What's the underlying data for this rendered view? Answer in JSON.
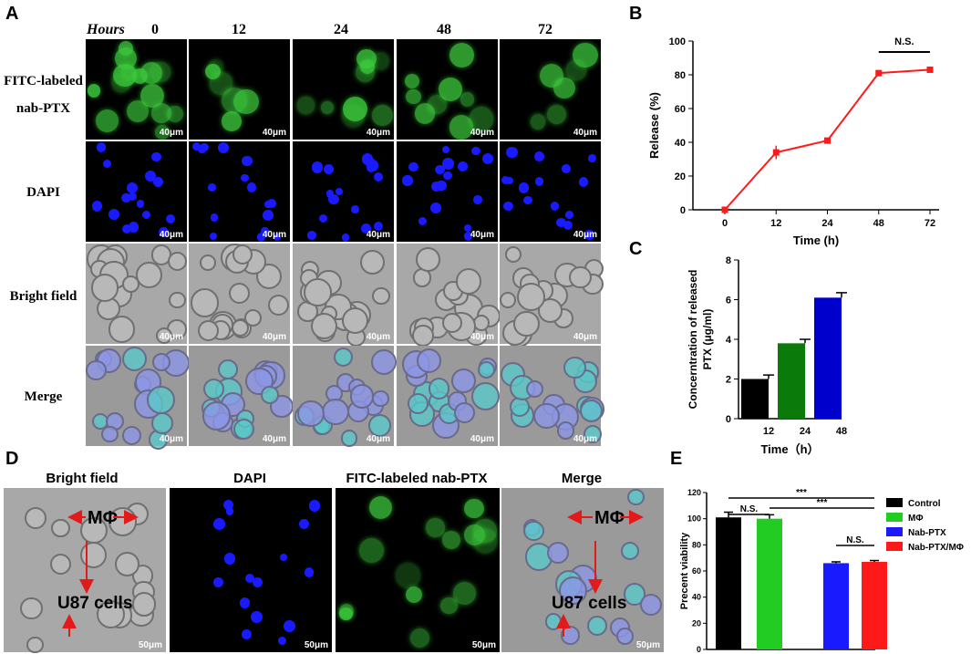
{
  "panels": {
    "A": "A",
    "B": "B",
    "C": "C",
    "D": "D",
    "E": "E"
  },
  "panel_a": {
    "hours_label": "Hours",
    "time_points": [
      "0",
      "12",
      "24",
      "48",
      "72"
    ],
    "rows": [
      {
        "line1": "FITC-labeled",
        "line2": "nab-PTX"
      },
      {
        "line1": "DAPI",
        "line2": ""
      },
      {
        "line1": "Bright field",
        "line2": ""
      },
      {
        "line1": "Merge",
        "line2": ""
      }
    ],
    "scale_bar": "40μm"
  },
  "panel_d": {
    "headers": [
      "Bright field",
      "DAPI",
      "FITC-labeled nab-PTX",
      "Merge"
    ],
    "mphi_label": "MΦ",
    "u87_label": "U87 cells",
    "scale_bar": "50μm"
  },
  "chart_data": [
    {
      "panel": "B",
      "type": "line",
      "x": [
        0,
        12,
        24,
        48,
        72
      ],
      "y": [
        0,
        34,
        41,
        81,
        83
      ],
      "err": [
        0,
        4,
        1,
        1,
        1
      ],
      "xlabel": "Time (h)",
      "ylabel": "Release (%)",
      "xticks": [
        "0",
        "12",
        "24",
        "48",
        "72"
      ],
      "yticks": [
        "0",
        "20",
        "40",
        "60",
        "80",
        "100"
      ],
      "ylim": [
        0,
        100
      ],
      "color": "#ff1a1a",
      "annotation": "N.S."
    },
    {
      "panel": "C",
      "type": "bar",
      "categories": [
        "12",
        "24",
        "48"
      ],
      "values": [
        2.0,
        3.8,
        6.1
      ],
      "err": [
        0.2,
        0.2,
        0.25
      ],
      "colors": [
        "#000000",
        "#0a7a0a",
        "#0000cc"
      ],
      "xlabel": "Time（h）",
      "ylabel_line1": "Concerntration of released",
      "ylabel_line2": "PTX (μg/ml)",
      "yticks": [
        "0",
        "2",
        "4",
        "6",
        "8"
      ],
      "ylim": [
        0,
        8
      ]
    },
    {
      "panel": "E",
      "type": "bar",
      "categories": [
        "Control",
        "MΦ",
        "Nab-PTX",
        "Nab-PTX/MΦ"
      ],
      "values": [
        101,
        100,
        66,
        67
      ],
      "err": [
        4,
        3,
        1,
        1
      ],
      "colors": [
        "#000000",
        "#22cc22",
        "#1a1aff",
        "#ff1a1a"
      ],
      "ylabel": "Precent viability",
      "yticks": [
        "0",
        "20",
        "40",
        "60",
        "80",
        "100",
        "120"
      ],
      "ylim": [
        0,
        120
      ],
      "legend": [
        "Control",
        "MΦ",
        "Nab-PTX",
        "Nab-PTX/MΦ"
      ],
      "significance": [
        "N.S.",
        "***",
        "***",
        "N.S."
      ]
    }
  ]
}
